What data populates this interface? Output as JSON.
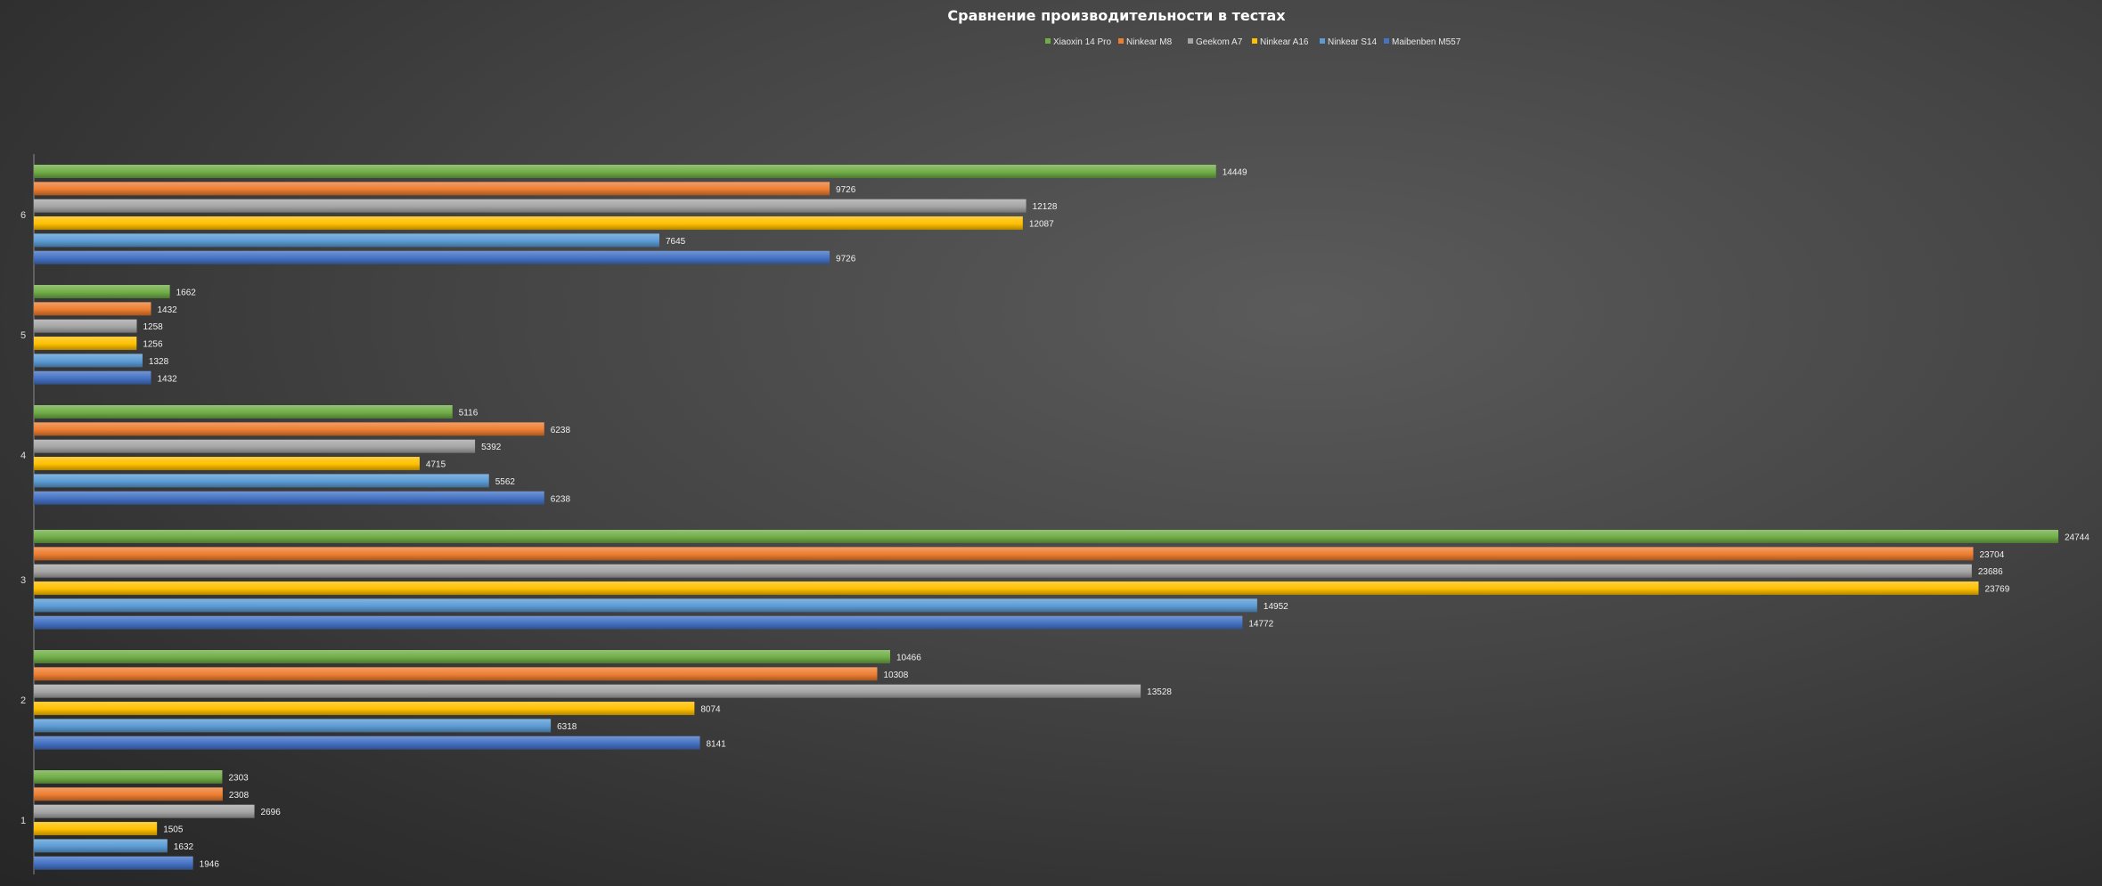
{
  "chart_data": {
    "type": "bar",
    "orientation": "horizontal",
    "title": "Сравнение производительности в тестах",
    "legend_position": "top",
    "grid": false,
    "xlim": [
      0,
      25000
    ],
    "categories": [
      "1",
      "2",
      "3",
      "4",
      "5",
      "6"
    ],
    "series": [
      {
        "name": "Xiaoxin 14 Pro",
        "color": "#70ad47",
        "values": [
          2303,
          10466,
          24744,
          5116,
          1662,
          14449
        ]
      },
      {
        "name": "Ninkear M8",
        "color": "#ed7d31",
        "values": [
          2308,
          10308,
          23704,
          6238,
          1432,
          9726
        ]
      },
      {
        "name": "Geekom A7",
        "color": "#a5a5a5",
        "values": [
          2696,
          13528,
          23686,
          5392,
          1258,
          12128
        ]
      },
      {
        "name": "Ninkear A16",
        "color": "#ffc000",
        "values": [
          1505,
          8074,
          23769,
          4715,
          1256,
          12087
        ]
      },
      {
        "name": "Ninkear S14",
        "color": "#5b9bd5",
        "values": [
          1632,
          6318,
          14952,
          5562,
          1328,
          7645
        ]
      },
      {
        "name": "Maibenben M557",
        "color": "#4472c4",
        "values": [
          1946,
          8141,
          14772,
          6238,
          1432,
          9726
        ]
      }
    ]
  }
}
